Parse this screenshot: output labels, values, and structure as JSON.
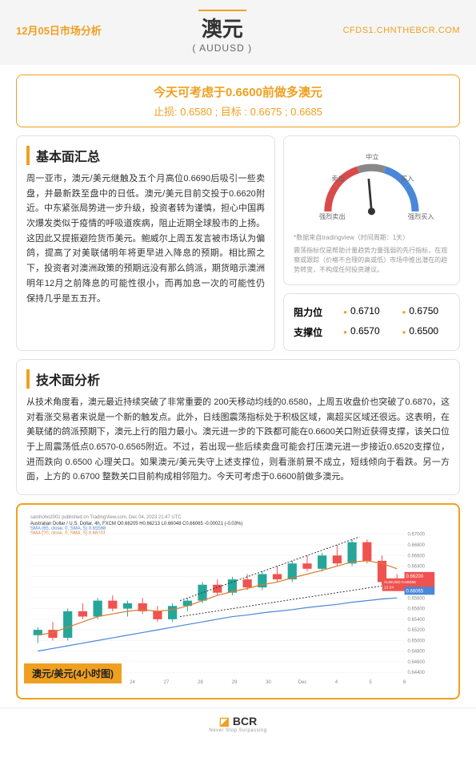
{
  "header": {
    "date": "12月05日市场分析",
    "title": "澳元",
    "subtitle": "( AUDUSD )",
    "url": "CFDS1.CHNTHEBCR.COM"
  },
  "hero": {
    "line1": "今天可考虑于0.6600前做多澳元",
    "line2": "止损: 0.6580 ; 目标 : 0.6675 ; 0.6685"
  },
  "fundamentals": {
    "title": "基本面汇总",
    "text": "周一亚市，澳元/美元继触及五个月高位0.6690后吸引一些卖盘，并最新跌至盘中的日低。澳元/美元目前交投于0.6620附近。中东紧张局势进一步升级，投资者转为谨慎，担心中国再次爆发类似于疫情的呼吸道疾病，阻止近期全球股市的上扬。这因此又提振避险货币美元。鲍威尔上周五发言被市场认为偏鸽，提高了对美联储明年将更早进入降息的预期。相比照之下，投资者对澳洲政策的预期远没有那么鸽派，期货暗示澳洲明年12月之前降息的可能性很小，而再加息一次的可能性仍保持几乎是五五开。"
  },
  "gauge": {
    "labels": {
      "strongSell": "强烈卖出",
      "sell": "卖出",
      "neutral": "中立",
      "buy": "买入",
      "strongBuy": "强烈买入"
    },
    "note1": "*数据来自tradingview（时间周期：1天）",
    "note2": "震荡指标仅是帮助计量趋势力量强弱的先行指标，在观察或跟踪（价格不合理的高或低）市场中推出潜在的趋势转变，不构成任何投资建议。",
    "colors": {
      "sell": "#d94a4a",
      "neutral": "#888888",
      "buy": "#4a87d9",
      "needle": "#333333"
    }
  },
  "levels": {
    "resistance": {
      "label": "阻力位",
      "v1": "0.6710",
      "v2": "0.6750"
    },
    "support": {
      "label": "支撑位",
      "v1": "0.6570",
      "v2": "0.6500"
    }
  },
  "technical": {
    "title": "技术面分析",
    "text": "从技术角度看，澳元最近持续突破了非常重要的 200天移动均线的0.6580，上周五收盘价也突破了0.6870，这对看涨交易者来说是一个新的触发点。此外，日线图震荡指标处于积极区域，离超买区域还很远。这表明，在美联储的鸽派预期下，澳元上行的阻力最小。澳元进一步的下跌都可能在0.6600关口附近获得支撑，该关口位于上周震荡低点0.6570-0.6565附近。不过，若出现一些后续卖盘可能会打压澳元进一步接近0.6520支撑位，进而跌向 0.6500 心理关口。如果澳元/美元失守上述支撑位，则看涨前景不成立，短线倾向于看跌。另一方面，上方的 0.6700 整数关口目前构成相邻阻力。今天可考虑于0.6600前做多澳元。"
  },
  "chart": {
    "meta": "samhoho2001 published on TradingView.com, Dec 04, 2023 21:47 UTC",
    "pair": "Australian Dollar / U.S. Dollar, 4h, FXCM  O0.66205  H0.66213  L0.66048  C0.66065  -0.00021 (-0.03%)",
    "sma1": "SMA (65, close, 0, SMA, 5)  0.65568",
    "sma2": "SMA (20, close, 0, SMA, 5)  0.66101",
    "title": "澳元/美元(4小时图)",
    "xLabels": [
      "21",
      "22",
      "23",
      "24",
      "27",
      "28",
      "29",
      "30",
      "Dec",
      "4",
      "5",
      "6"
    ],
    "yLabels": [
      "0.67000",
      "0.66800",
      "0.66600",
      "0.66400",
      "0.66200",
      "0.66000",
      "0.65800",
      "0.65600",
      "0.65400",
      "0.65200",
      "0.65000",
      "0.64800",
      "0.64600",
      "0.64400"
    ],
    "priceBadge1": "0.66200",
    "priceBadge2": "AUDUSD  0.66085",
    "priceBadge3": "12:24",
    "priceBadge4": "0.66065",
    "colors": {
      "up": "#26a69a",
      "down": "#ef5350",
      "sma1": "#4a87d9",
      "sma2": "#d97b2f",
      "grid": "#eeeeee",
      "text": "#888888",
      "badge1": "#ef5350",
      "badge2": "#ef5350",
      "badge4": "#4a87d9"
    },
    "yMin": 0.644,
    "yMax": 0.67,
    "candles": [
      {
        "o": 0.651,
        "h": 0.6525,
        "l": 0.6495,
        "c": 0.652,
        "d": 1
      },
      {
        "o": 0.652,
        "h": 0.6535,
        "l": 0.65,
        "c": 0.6505,
        "d": 0
      },
      {
        "o": 0.6505,
        "h": 0.656,
        "l": 0.65,
        "c": 0.6555,
        "d": 1
      },
      {
        "o": 0.6555,
        "h": 0.657,
        "l": 0.654,
        "c": 0.6545,
        "d": 0
      },
      {
        "o": 0.6545,
        "h": 0.658,
        "l": 0.654,
        "c": 0.6575,
        "d": 1
      },
      {
        "o": 0.6575,
        "h": 0.6585,
        "l": 0.6555,
        "c": 0.656,
        "d": 0
      },
      {
        "o": 0.656,
        "h": 0.6575,
        "l": 0.6545,
        "c": 0.657,
        "d": 1
      },
      {
        "o": 0.657,
        "h": 0.658,
        "l": 0.655,
        "c": 0.6555,
        "d": 0
      },
      {
        "o": 0.6555,
        "h": 0.6565,
        "l": 0.6535,
        "c": 0.654,
        "d": 0
      },
      {
        "o": 0.654,
        "h": 0.657,
        "l": 0.6535,
        "c": 0.6565,
        "d": 1
      },
      {
        "o": 0.6565,
        "h": 0.658,
        "l": 0.6555,
        "c": 0.6575,
        "d": 1
      },
      {
        "o": 0.6575,
        "h": 0.661,
        "l": 0.657,
        "c": 0.6605,
        "d": 1
      },
      {
        "o": 0.6605,
        "h": 0.6615,
        "l": 0.6585,
        "c": 0.659,
        "d": 0
      },
      {
        "o": 0.659,
        "h": 0.662,
        "l": 0.6585,
        "c": 0.6615,
        "d": 1
      },
      {
        "o": 0.6615,
        "h": 0.6625,
        "l": 0.6595,
        "c": 0.66,
        "d": 0
      },
      {
        "o": 0.66,
        "h": 0.663,
        "l": 0.6595,
        "c": 0.6625,
        "d": 1
      },
      {
        "o": 0.6625,
        "h": 0.664,
        "l": 0.661,
        "c": 0.6615,
        "d": 0
      },
      {
        "o": 0.6615,
        "h": 0.665,
        "l": 0.661,
        "c": 0.6645,
        "d": 1
      },
      {
        "o": 0.6645,
        "h": 0.666,
        "l": 0.663,
        "c": 0.6635,
        "d": 0
      },
      {
        "o": 0.6635,
        "h": 0.6665,
        "l": 0.663,
        "c": 0.666,
        "d": 1
      },
      {
        "o": 0.666,
        "h": 0.668,
        "l": 0.664,
        "c": 0.6645,
        "d": 0
      },
      {
        "o": 0.6645,
        "h": 0.669,
        "l": 0.664,
        "c": 0.6685,
        "d": 1
      },
      {
        "o": 0.6685,
        "h": 0.669,
        "l": 0.6645,
        "c": 0.665,
        "d": 0
      },
      {
        "o": 0.665,
        "h": 0.666,
        "l": 0.6605,
        "c": 0.661,
        "d": 0
      },
      {
        "o": 0.661,
        "h": 0.6625,
        "l": 0.66,
        "c": 0.6607,
        "d": 0
      }
    ],
    "sma1Path": [
      0.648,
      0.6485,
      0.649,
      0.6495,
      0.65,
      0.6505,
      0.651,
      0.6515,
      0.652,
      0.6525,
      0.653,
      0.6535,
      0.654,
      0.6545,
      0.6548,
      0.6552,
      0.6555,
      0.6558,
      0.6562,
      0.6565,
      0.6568,
      0.6572,
      0.6575,
      0.6578,
      0.658
    ],
    "sma2Path": [
      0.651,
      0.6515,
      0.6525,
      0.6535,
      0.6545,
      0.655,
      0.6555,
      0.6558,
      0.6555,
      0.6558,
      0.6565,
      0.6575,
      0.6585,
      0.6592,
      0.6598,
      0.6605,
      0.661,
      0.6618,
      0.6625,
      0.6632,
      0.664,
      0.6648,
      0.665,
      0.6645,
      0.6635
    ]
  },
  "footer": {
    "logo": "BCR",
    "sub": "Never Stop Surpassing"
  }
}
